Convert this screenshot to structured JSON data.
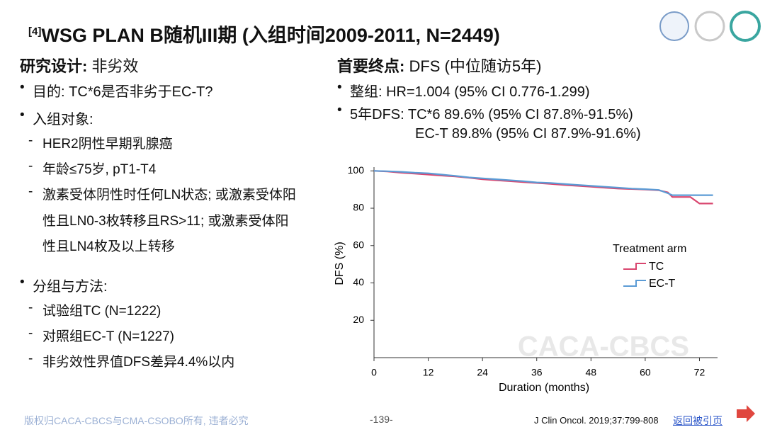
{
  "header": {
    "ref": "[4]",
    "title": "WSG PLAN B随机III期 (入组时间2009-2011, N=2449)"
  },
  "left": {
    "heading": "研究设计:",
    "heading_rest": " 非劣效",
    "items": [
      {
        "kind": "bullet",
        "text": "目的: TC*6是否非劣于EC-T?"
      },
      {
        "kind": "bullet",
        "text": "入组对象:"
      },
      {
        "kind": "sub",
        "text": "HER2阴性早期乳腺癌"
      },
      {
        "kind": "sub",
        "text": "年龄≤75岁, pT1-T4"
      },
      {
        "kind": "sub",
        "text": "激素受体阴性时任何LN状态; 或激素受体阳"
      },
      {
        "kind": "cont",
        "text": "性且LN0-3枚转移且RS>11; 或激素受体阳"
      },
      {
        "kind": "cont",
        "text": "性且LN4枚及以上转移"
      },
      {
        "kind": "bullet",
        "text": "分组与方法:"
      },
      {
        "kind": "sub",
        "text": "试验组TC (N=1222)"
      },
      {
        "kind": "sub",
        "text": "对照组EC-T (N=1227)"
      },
      {
        "kind": "sub",
        "text": "非劣效性界值DFS差异4.4%以内"
      }
    ]
  },
  "right": {
    "heading": "首要终点:",
    "heading_rest": " DFS (中位随访5年)",
    "items": [
      {
        "kind": "bullet",
        "text": "整组: HR=1.004 (95% CI 0.776-1.299)"
      },
      {
        "kind": "bullet",
        "text": "5年DFS: TC*6 89.6% (95% CI 87.8%-91.5%)"
      },
      {
        "kind": "cont",
        "text": "EC-T 89.8% (95% CI 87.9%-91.6%)"
      }
    ]
  },
  "chart_data": {
    "type": "line",
    "xlabel": "Duration (months)",
    "ylabel": "DFS (%)",
    "legend_title": "Treatment arm",
    "watermark": "CACA-CBCS",
    "x": [
      0,
      3,
      6,
      9,
      12,
      15,
      18,
      21,
      24,
      27,
      30,
      33,
      36,
      39,
      42,
      45,
      48,
      51,
      54,
      57,
      60,
      63,
      65,
      66,
      70,
      72,
      75
    ],
    "series": [
      {
        "name": "TC",
        "color": "#d9466f",
        "values": [
          100,
          99.7,
          99,
          98.5,
          98,
          97.5,
          97,
          96.3,
          95.5,
          95,
          94.5,
          94,
          93.5,
          93,
          92.5,
          92,
          91.5,
          91,
          90.5,
          90.3,
          90,
          89.6,
          88.5,
          86,
          86,
          82.5,
          82.5
        ]
      },
      {
        "name": "EC-T",
        "color": "#5b9bd5",
        "values": [
          100,
          99.8,
          99.5,
          99,
          98.7,
          98,
          97.3,
          96.5,
          96,
          95.5,
          95,
          94.5,
          93.8,
          93.5,
          93,
          92.5,
          92,
          91.5,
          91,
          90.5,
          90.2,
          89.8,
          88,
          87,
          87,
          87,
          87
        ]
      }
    ],
    "xlim": [
      0,
      76
    ],
    "xticks": [
      0,
      12,
      24,
      36,
      48,
      60,
      72
    ],
    "ylim": [
      0,
      102
    ],
    "yticks": [
      20,
      40,
      60,
      80,
      100
    ],
    "grid": false
  },
  "footer": {
    "copyright": "版权归CACA-CBCS与CMA-CSOBO所有, 违者必究",
    "page": "-139-",
    "citation": "J Clin Oncol. 2019;37:799-808",
    "back": "返回被引页"
  }
}
